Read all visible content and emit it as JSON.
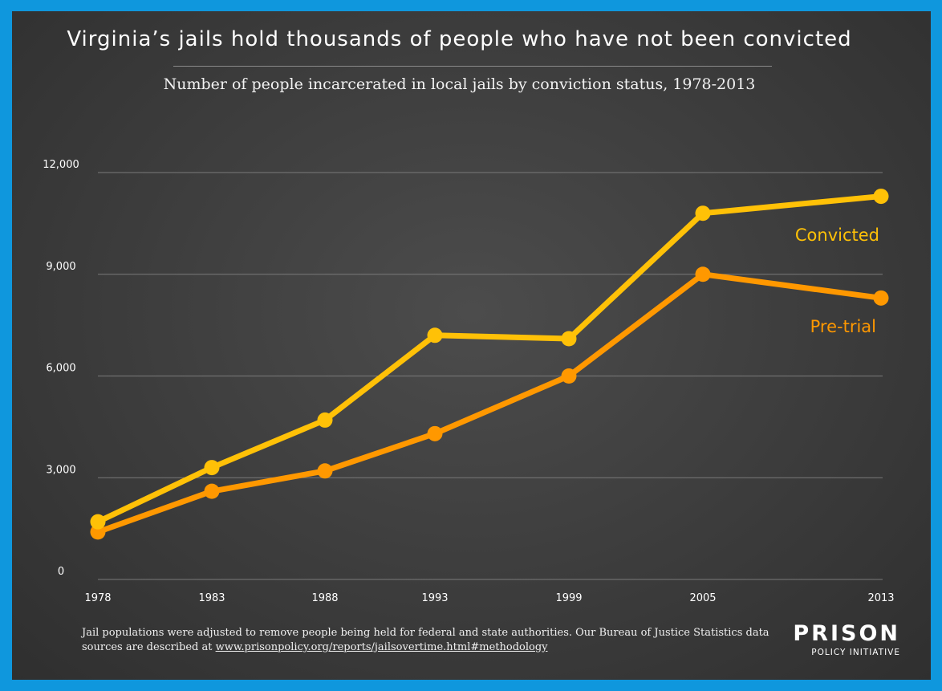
{
  "title": "Virginia’s jails hold thousands of people who have not been convicted",
  "subtitle": "Number of people incarcerated in local jails by conviction status, 1978-2013",
  "footnote": {
    "text": "Jail populations were adjusted to remove people being held for federal and state authorities. Our Bureau of Justice Statistics data sources are described at ",
    "link": "www.prisonpolicy.org/reports/jailsovertime.html#methodology"
  },
  "logo": {
    "line1": "PRISON",
    "line2": "POLICY INITIATIVE"
  },
  "colors": {
    "background": "#0f97dd",
    "convicted": "#ffc107",
    "pretrial": "#ff9800",
    "grid": "#7a7a7a"
  },
  "chart_data": {
    "type": "line",
    "categories": [
      "1978",
      "1983",
      "1988",
      "1993",
      "1999",
      "2005",
      "2013"
    ],
    "ylim": [
      0,
      12000
    ],
    "yticks": [
      0,
      3000,
      6000,
      9000,
      12000
    ],
    "ytick_labels": [
      "0",
      "3,000",
      "6,000",
      "9,000",
      "12,000"
    ],
    "grid": true,
    "series": [
      {
        "name": "Convicted",
        "color": "#ffc107",
        "values": [
          1700,
          3300,
          4700,
          7200,
          7100,
          10800,
          11300
        ]
      },
      {
        "name": "Pre-trial",
        "color": "#ff9800",
        "values": [
          1400,
          2600,
          3200,
          4300,
          6000,
          9000,
          8300
        ]
      }
    ]
  }
}
